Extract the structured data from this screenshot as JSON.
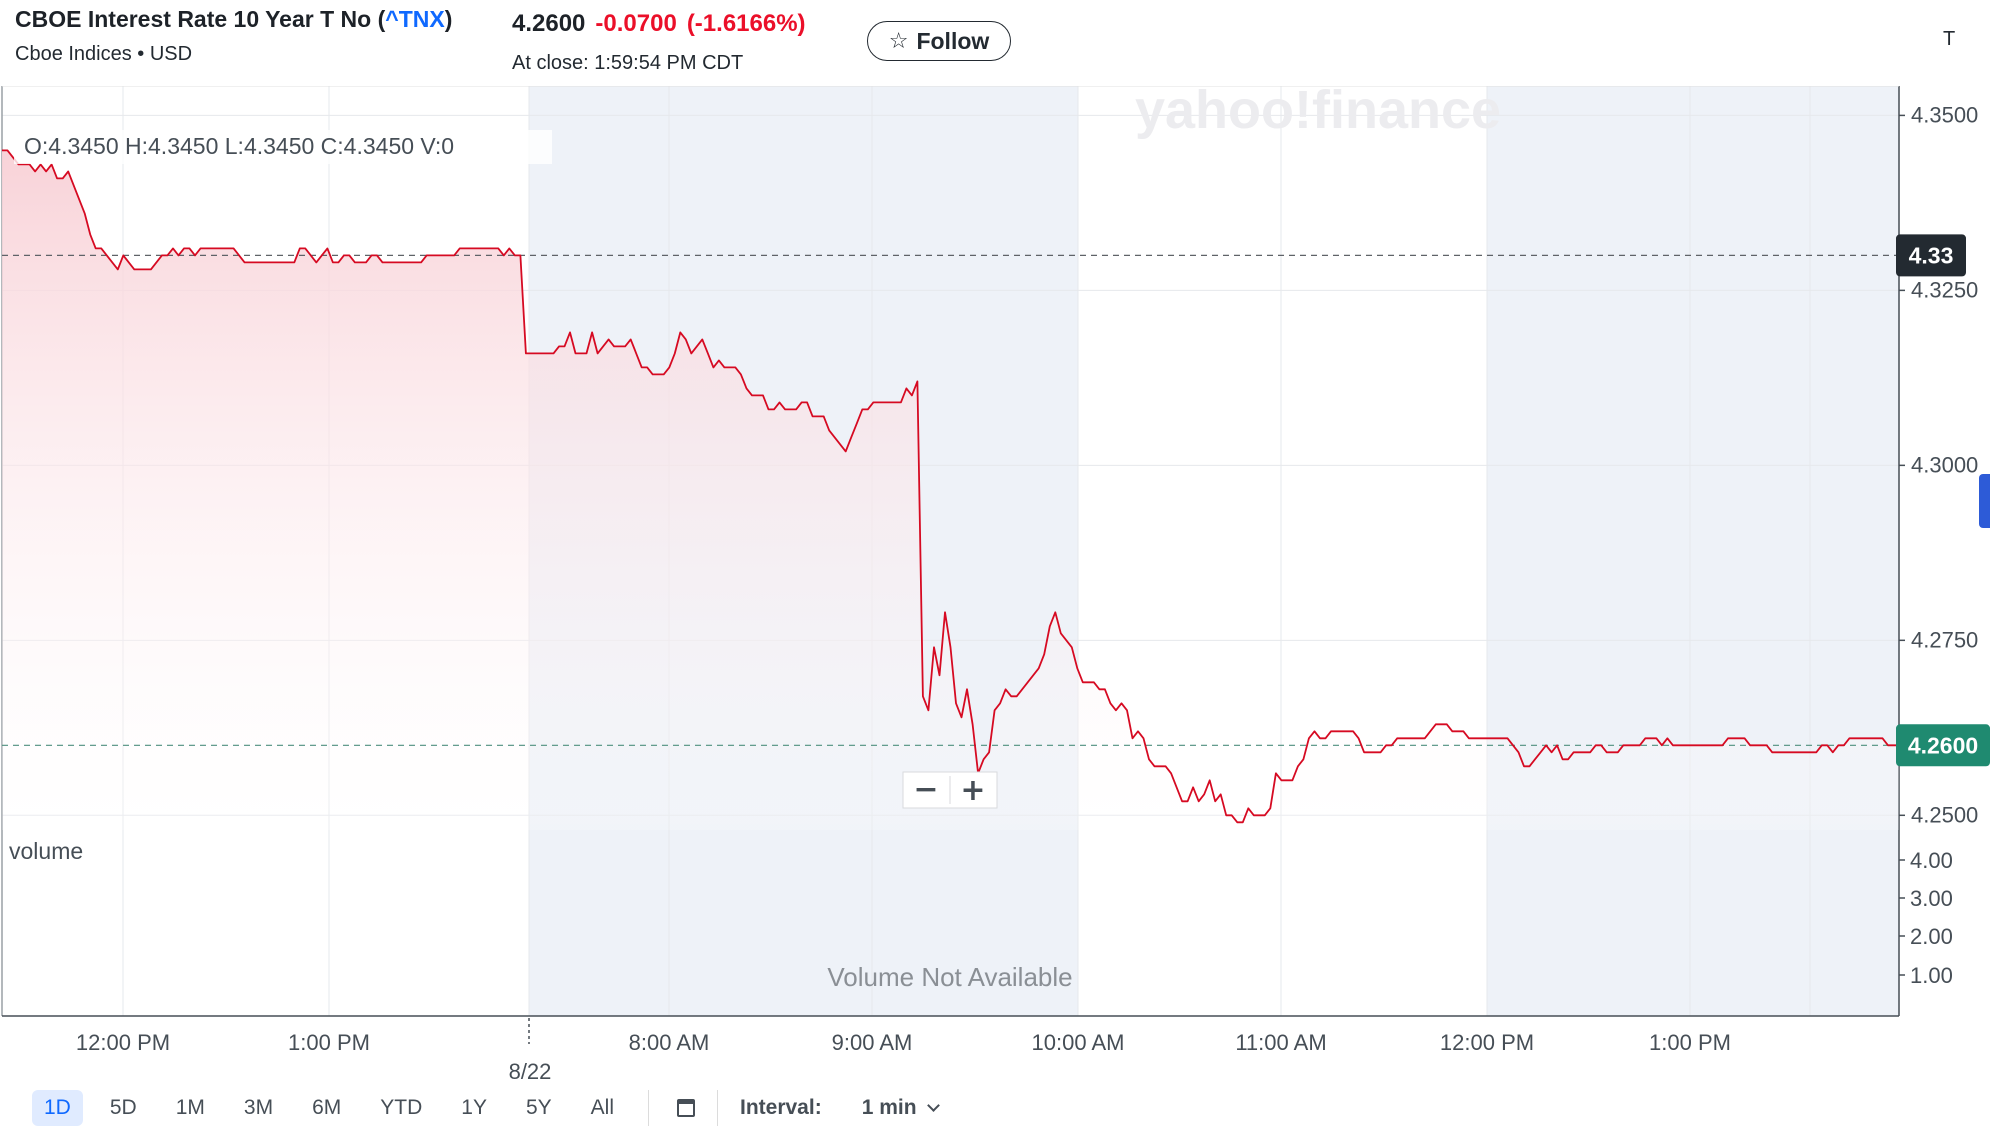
{
  "header": {
    "title_prefix": "CBOE Interest Rate 10 Year T No (",
    "ticker": "^TNX",
    "title_suffix": ")",
    "subtitle": "Cboe Indices • USD",
    "price": "4.2600",
    "change": "-0.0700",
    "change_pct": "(-1.6166%)",
    "close_time": "At close: 1:59:54 PM CDT",
    "follow_label": "Follow",
    "edge_letter": "T"
  },
  "colors": {
    "line": "#d60a22",
    "area_top": "#f8d0d6",
    "grid": "#e6e8ec",
    "shade": "#eef2f8",
    "current_label_bg": "#1f8a70",
    "prev_label_bg": "#232a31"
  },
  "chart_data": {
    "type": "line",
    "ohlc": "O:4.3450   H:4.3450   L:4.3450   C:4.3450   V:0",
    "watermark": "yahoo!finance",
    "y_ticks": [
      "4.3500",
      "4.3250",
      "4.3000",
      "4.2750",
      "4.2500"
    ],
    "ylim": [
      4.2479,
      4.3542
    ],
    "prev_close": 4.33,
    "prev_close_label": "4.33",
    "current": 4.26,
    "current_label": "4.2600",
    "x_labels": [
      "12:00 PM",
      "1:00 PM",
      "8:00 AM",
      "9:00 AM",
      "10:00 AM",
      "11:00 AM",
      "12:00 PM",
      "1:00 PM"
    ],
    "session_label": "8/22",
    "volume_label": "volume",
    "volume_ticks": [
      "4.00",
      "3.00",
      "2.00",
      "1.00"
    ],
    "volume_note": "Volume Not Available",
    "series": [
      {
        "values": [
          4.345,
          4.345,
          4.344,
          4.343,
          4.343,
          4.343,
          4.342,
          4.343,
          4.342,
          4.343,
          4.341,
          4.341,
          4.342,
          4.34,
          4.338,
          4.336,
          4.333,
          4.331,
          4.331,
          4.33,
          4.329,
          4.328,
          4.33,
          4.329,
          4.328,
          4.328,
          4.328,
          4.328,
          4.329,
          4.33,
          4.33,
          4.331,
          4.33,
          4.331,
          4.331,
          4.33,
          4.331,
          4.331,
          4.331,
          4.331,
          4.331,
          4.331,
          4.331,
          4.33,
          4.329,
          4.329,
          4.329,
          4.329,
          4.329,
          4.329,
          4.329,
          4.329,
          4.329,
          4.329,
          4.331,
          4.331,
          4.33,
          4.329,
          4.33,
          4.331,
          4.329,
          4.329,
          4.33,
          4.33,
          4.329,
          4.329,
          4.329,
          4.33,
          4.33,
          4.329,
          4.329,
          4.329,
          4.329,
          4.329,
          4.329,
          4.329,
          4.329,
          4.33,
          4.33,
          4.33,
          4.33,
          4.33,
          4.33,
          4.331,
          4.331,
          4.331,
          4.331,
          4.331,
          4.331,
          4.331,
          4.331,
          4.33,
          4.331,
          4.33,
          4.33,
          4.316,
          4.316,
          4.316,
          4.316,
          4.316,
          4.316,
          4.317,
          4.317,
          4.319,
          4.316,
          4.316,
          4.316,
          4.319,
          4.316,
          4.317,
          4.318,
          4.317,
          4.317,
          4.317,
          4.318,
          4.316,
          4.314,
          4.314,
          4.313,
          4.313,
          4.313,
          4.314,
          4.316,
          4.319,
          4.318,
          4.316,
          4.317,
          4.318,
          4.316,
          4.314,
          4.315,
          4.314,
          4.314,
          4.314,
          4.313,
          4.311,
          4.31,
          4.31,
          4.31,
          4.308,
          4.308,
          4.309,
          4.308,
          4.308,
          4.308,
          4.309,
          4.309,
          4.307,
          4.307,
          4.307,
          4.305,
          4.304,
          4.303,
          4.302,
          4.304,
          4.306,
          4.308,
          4.308,
          4.309,
          4.309,
          4.309,
          4.309,
          4.309,
          4.309,
          4.311,
          4.31,
          4.312,
          4.267,
          4.265,
          4.274,
          4.27,
          4.279,
          4.274,
          4.266,
          4.264,
          4.268,
          4.263,
          4.256,
          4.258,
          4.259,
          4.265,
          4.266,
          4.268,
          4.267,
          4.267,
          4.268,
          4.269,
          4.27,
          4.271,
          4.273,
          4.277,
          4.279,
          4.276,
          4.275,
          4.274,
          4.271,
          4.269,
          4.269,
          4.269,
          4.268,
          4.268,
          4.266,
          4.265,
          4.266,
          4.265,
          4.261,
          4.262,
          4.261,
          4.258,
          4.257,
          4.257,
          4.257,
          4.256,
          4.254,
          4.252,
          4.252,
          4.254,
          4.252,
          4.253,
          4.255,
          4.252,
          4.253,
          4.25,
          4.25,
          4.249,
          4.249,
          4.251,
          4.25,
          4.25,
          4.25,
          4.251,
          4.256,
          4.255,
          4.255,
          4.255,
          4.257,
          4.258,
          4.261,
          4.262,
          4.261,
          4.261,
          4.262,
          4.262,
          4.262,
          4.262,
          4.262,
          4.261,
          4.259,
          4.259,
          4.259,
          4.259,
          4.26,
          4.26,
          4.261,
          4.261,
          4.261,
          4.261,
          4.261,
          4.261,
          4.262,
          4.263,
          4.263,
          4.263,
          4.262,
          4.262,
          4.262,
          4.261,
          4.261,
          4.261,
          4.261,
          4.261,
          4.261,
          4.261,
          4.261,
          4.26,
          4.259,
          4.257,
          4.257,
          4.258,
          4.259,
          4.26,
          4.259,
          4.26,
          4.258,
          4.258,
          4.259,
          4.259,
          4.259,
          4.259,
          4.26,
          4.26,
          4.259,
          4.259,
          4.259,
          4.26,
          4.26,
          4.26,
          4.26,
          4.261,
          4.261,
          4.261,
          4.26,
          4.261,
          4.26,
          4.26,
          4.26,
          4.26,
          4.26,
          4.26,
          4.26,
          4.26,
          4.26,
          4.26,
          4.261,
          4.261,
          4.261,
          4.261,
          4.26,
          4.26,
          4.26,
          4.26,
          4.259,
          4.259,
          4.259,
          4.259,
          4.259,
          4.259,
          4.259,
          4.259,
          4.259,
          4.26,
          4.26,
          4.259,
          4.26,
          4.26,
          4.261,
          4.261,
          4.261,
          4.261,
          4.261,
          4.261,
          4.261,
          4.26,
          4.26,
          4.26
        ]
      }
    ]
  },
  "zoom": {
    "minus": "−",
    "plus": "+"
  },
  "toolbar": {
    "ranges": [
      {
        "label": "1D",
        "active": true
      },
      {
        "label": "5D"
      },
      {
        "label": "1M"
      },
      {
        "label": "3M"
      },
      {
        "label": "6M"
      },
      {
        "label": "YTD"
      },
      {
        "label": "1Y"
      },
      {
        "label": "5Y"
      },
      {
        "label": "All"
      }
    ],
    "interval_label": "Interval:",
    "interval_value": "1 min"
  }
}
